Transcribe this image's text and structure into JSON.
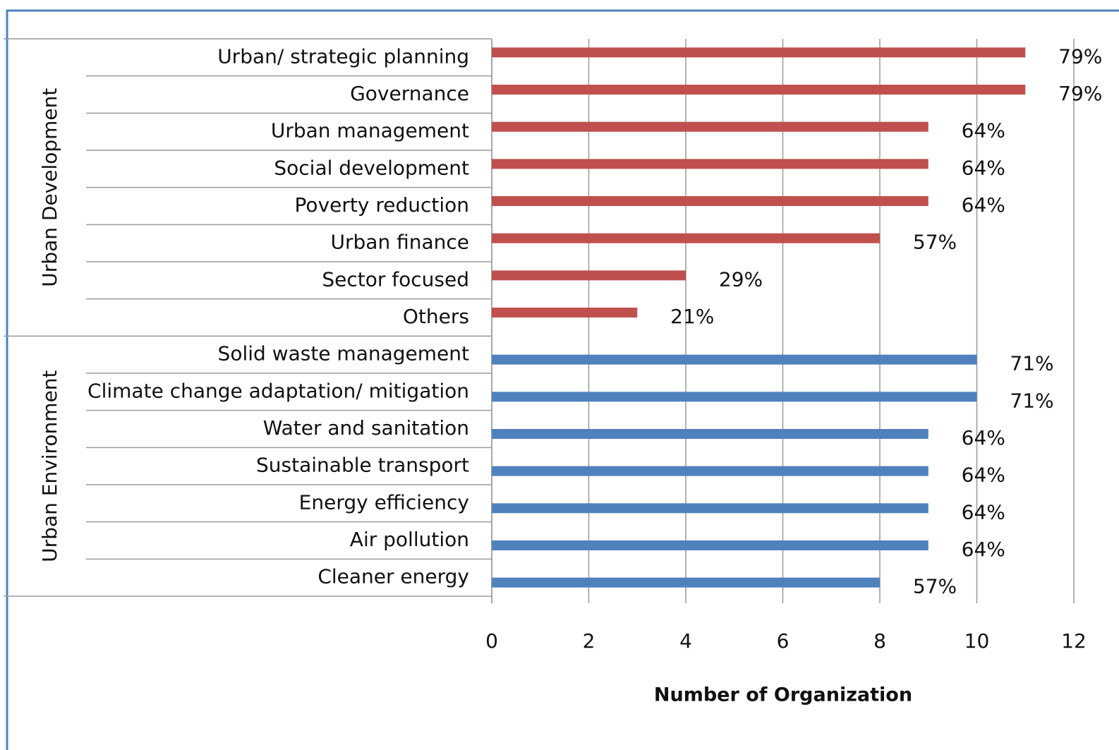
{
  "chart_data": {
    "type": "bar",
    "orientation": "horizontal",
    "x_label": "Number of Organization",
    "xlim": [
      0,
      12
    ],
    "xticks": [
      0,
      2,
      4,
      6,
      8,
      10,
      12
    ],
    "grid": true,
    "groups": [
      {
        "name": "Urban Development",
        "color": "#c0504d",
        "categories": [
          "Urban/ strategic planning",
          "Governance",
          "Urban management",
          "Social development",
          "Poverty  reduction",
          "Urban finance",
          "Sector focused",
          "Others"
        ],
        "values": [
          11,
          11,
          9,
          9,
          9,
          8,
          4,
          3
        ],
        "percent_labels": [
          "79%",
          "79%",
          "64%",
          "64%",
          "64%",
          "57%",
          "29%",
          "21%"
        ]
      },
      {
        "name": "Urban Environment",
        "color": "#4f81bd",
        "categories": [
          "Solid waste management",
          "Climate change adaptation/ mitigation",
          "Water and sanitation",
          "Sustainable transport",
          "Energy efficiency",
          "Air pollution",
          "Cleaner energy"
        ],
        "values": [
          10,
          10,
          9,
          9,
          9,
          9,
          8
        ],
        "percent_labels": [
          "71%",
          "71%",
          "64%",
          "64%",
          "64%",
          "64%",
          "57%"
        ]
      }
    ]
  }
}
